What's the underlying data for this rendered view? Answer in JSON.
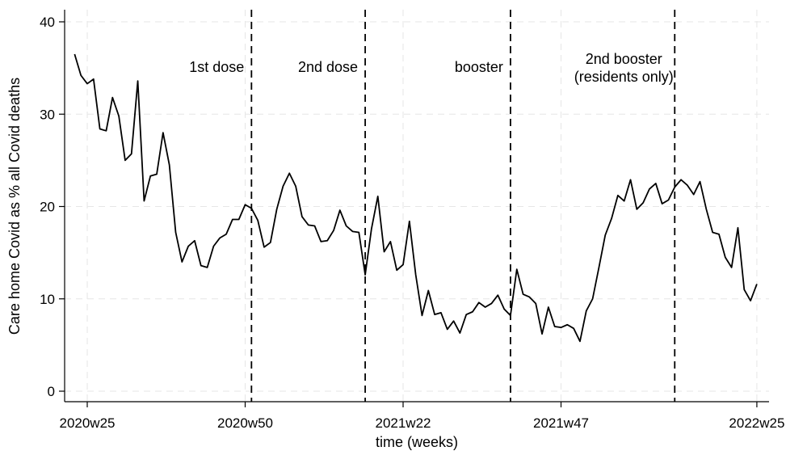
{
  "chart_data": {
    "type": "line",
    "title": "",
    "xlabel": "time (weeks)",
    "ylabel": "Care home Covid as % all Covid deaths",
    "ylim": [
      0,
      40
    ],
    "yticks": [
      0,
      10,
      20,
      30,
      40
    ],
    "xticks": [
      {
        "label": "2020w25",
        "week_index": 0
      },
      {
        "label": "2020w50",
        "week_index": 25
      },
      {
        "label": "2021w22",
        "week_index": 50
      },
      {
        "label": "2021w47",
        "week_index": 75
      },
      {
        "label": "2022w25",
        "week_index": 106
      }
    ],
    "x_unit": "weeks from 2020w25",
    "grid": true,
    "legend": "none",
    "events": [
      {
        "label_lines": [
          "1st dose"
        ],
        "week_index": 26
      },
      {
        "label_lines": [
          "2nd dose"
        ],
        "week_index": 44
      },
      {
        "label_lines": [
          "booster"
        ],
        "week_index": 67
      },
      {
        "label_lines": [
          "2nd booster",
          "(residents only)"
        ],
        "week_index": 93
      }
    ],
    "series": [
      {
        "x_start_week_index": -2,
        "values": [
          36.5,
          34.2,
          33.3,
          33.8,
          28.4,
          28.2,
          31.8,
          29.8,
          25.0,
          25.7,
          33.6,
          20.6,
          23.3,
          23.5,
          28.0,
          24.5,
          17.2,
          14.0,
          15.7,
          16.3,
          13.6,
          13.4,
          15.7,
          16.6,
          17.0,
          18.6,
          18.6,
          20.2,
          19.8,
          18.5,
          15.6,
          16.1,
          19.7,
          22.2,
          23.6,
          22.2,
          18.9,
          18.0,
          17.9,
          16.2,
          16.3,
          17.4,
          19.6,
          17.9,
          17.3,
          17.2,
          12.6,
          17.6,
          21.1,
          15.1,
          16.2,
          13.1,
          13.7,
          18.4,
          12.6,
          8.2,
          10.9,
          8.3,
          8.5,
          6.7,
          7.6,
          6.3,
          8.3,
          8.6,
          9.6,
          9.1,
          9.5,
          10.4,
          8.9,
          8.2,
          13.2,
          10.5,
          10.2,
          9.5,
          6.2,
          9.1,
          7.0,
          6.9,
          7.2,
          6.8,
          5.4,
          8.7,
          10.0,
          13.4,
          16.9,
          18.7,
          21.2,
          20.6,
          22.9,
          19.7,
          20.4,
          21.9,
          22.5,
          20.3,
          20.7,
          22.1,
          22.9,
          22.3,
          21.3,
          22.7,
          19.7,
          17.2,
          17.0,
          14.5,
          13.4,
          17.7,
          11.0,
          9.8,
          11.6
        ]
      }
    ]
  }
}
